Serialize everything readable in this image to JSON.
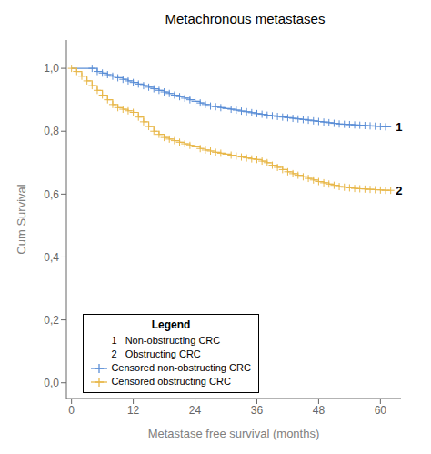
{
  "chart_data": {
    "type": "step",
    "title": "Metachronous metastases",
    "x_label": "Metastase free survival (months)",
    "y_label": "Cum Survival",
    "xlim": [
      -1,
      64
    ],
    "ylim": [
      -0.05,
      1.09
    ],
    "xticks": [
      0,
      12,
      24,
      36,
      48,
      60
    ],
    "yticks": [
      {
        "value": 0.0,
        "label": "0,0"
      },
      {
        "value": 0.2,
        "label": "0,2"
      },
      {
        "value": 0.4,
        "label": "0,4"
      },
      {
        "value": 0.6,
        "label": "0,6"
      },
      {
        "value": 0.8,
        "label": "0,8"
      },
      {
        "value": 1.0,
        "label": "1,0"
      }
    ],
    "grid": false,
    "legend": "lower left",
    "legend_title": "Legend",
    "series": [
      {
        "name": "1   Non-obstructing CRC",
        "type": "step",
        "color": "#5B8ED6",
        "x": [
          0,
          4,
          5,
          6,
          7,
          8,
          9,
          10,
          11,
          12,
          13,
          14,
          15,
          16,
          17,
          18,
          19,
          20,
          21,
          22,
          23,
          24,
          25,
          26,
          27,
          28,
          29,
          30,
          31,
          32,
          33,
          34,
          35,
          36,
          37,
          38,
          39,
          40,
          41,
          42,
          43,
          44,
          45,
          46,
          47,
          48,
          49,
          50,
          51,
          52,
          53,
          54,
          55,
          56,
          57,
          58,
          59,
          60,
          61,
          62
        ],
        "values": [
          1.0,
          1.0,
          0.99,
          0.985,
          0.98,
          0.975,
          0.97,
          0.965,
          0.96,
          0.955,
          0.95,
          0.945,
          0.94,
          0.935,
          0.93,
          0.925,
          0.92,
          0.915,
          0.91,
          0.905,
          0.9,
          0.895,
          0.89,
          0.885,
          0.88,
          0.878,
          0.875,
          0.872,
          0.87,
          0.867,
          0.864,
          0.862,
          0.859,
          0.856,
          0.854,
          0.851,
          0.849,
          0.847,
          0.845,
          0.843,
          0.841,
          0.839,
          0.837,
          0.835,
          0.833,
          0.831,
          0.829,
          0.827,
          0.825,
          0.823,
          0.822,
          0.821,
          0.82,
          0.819,
          0.818,
          0.817,
          0.816,
          0.815,
          0.814,
          0.813
        ]
      },
      {
        "name": "2   Obstructing CRC",
        "type": "step",
        "color": "#E8B84B",
        "x": [
          0,
          1,
          2,
          3,
          4,
          5,
          6,
          7,
          8,
          9,
          10,
          11,
          12,
          13,
          14,
          15,
          16,
          17,
          18,
          19,
          20,
          21,
          22,
          23,
          24,
          25,
          26,
          27,
          28,
          29,
          30,
          31,
          32,
          33,
          34,
          35,
          36,
          37,
          38,
          39,
          40,
          41,
          42,
          43,
          44,
          45,
          46,
          47,
          48,
          49,
          50,
          51,
          52,
          53,
          54,
          55,
          56,
          57,
          58,
          59,
          60,
          61,
          62
        ],
        "values": [
          1.0,
          0.99,
          0.975,
          0.96,
          0.945,
          0.93,
          0.915,
          0.9,
          0.885,
          0.875,
          0.87,
          0.865,
          0.86,
          0.845,
          0.83,
          0.815,
          0.8,
          0.79,
          0.78,
          0.775,
          0.77,
          0.765,
          0.76,
          0.755,
          0.75,
          0.745,
          0.74,
          0.737,
          0.733,
          0.73,
          0.727,
          0.724,
          0.721,
          0.718,
          0.715,
          0.712,
          0.71,
          0.705,
          0.7,
          0.692,
          0.685,
          0.678,
          0.671,
          0.665,
          0.66,
          0.655,
          0.65,
          0.645,
          0.64,
          0.636,
          0.632,
          0.628,
          0.624,
          0.622,
          0.62,
          0.618,
          0.617,
          0.616,
          0.615,
          0.614,
          0.613,
          0.612,
          0.612
        ]
      },
      {
        "name": "Censored non-obstructing CRC",
        "type": "scatter",
        "marker": "plus",
        "color": "#5B8ED6",
        "x": [
          4,
          5,
          6,
          7,
          8,
          9,
          10,
          11,
          12,
          13,
          14,
          15,
          16,
          17,
          18,
          19,
          20,
          21,
          22,
          23,
          24,
          25,
          26,
          27,
          28,
          29,
          30,
          31,
          32,
          33,
          34,
          35,
          36,
          37,
          38,
          39,
          40,
          41,
          42,
          43,
          44,
          45,
          46,
          47,
          48,
          49,
          50,
          51,
          52,
          53,
          54,
          55,
          56,
          57,
          58,
          59,
          60,
          61
        ],
        "values": [
          1.0,
          0.99,
          0.985,
          0.98,
          0.975,
          0.97,
          0.965,
          0.96,
          0.955,
          0.95,
          0.945,
          0.94,
          0.935,
          0.93,
          0.925,
          0.92,
          0.915,
          0.91,
          0.905,
          0.9,
          0.895,
          0.89,
          0.885,
          0.88,
          0.878,
          0.875,
          0.872,
          0.87,
          0.867,
          0.864,
          0.862,
          0.859,
          0.856,
          0.854,
          0.851,
          0.849,
          0.847,
          0.845,
          0.843,
          0.841,
          0.839,
          0.837,
          0.835,
          0.833,
          0.831,
          0.829,
          0.827,
          0.825,
          0.823,
          0.822,
          0.821,
          0.82,
          0.819,
          0.818,
          0.817,
          0.816,
          0.815,
          0.814
        ]
      },
      {
        "name": "Censored obstructing CRC",
        "type": "scatter",
        "marker": "plus",
        "color": "#E8B84B",
        "x": [
          0,
          1,
          2,
          3,
          4,
          5,
          6,
          7,
          8,
          9,
          10,
          11,
          12,
          13,
          14,
          15,
          16,
          17,
          18,
          19,
          20,
          21,
          22,
          23,
          24,
          25,
          26,
          27,
          28,
          29,
          30,
          31,
          32,
          33,
          34,
          35,
          36,
          37,
          38,
          39,
          40,
          41,
          42,
          43,
          44,
          45,
          46,
          47,
          48,
          49,
          50,
          51,
          52,
          53,
          54,
          55,
          56,
          57,
          58,
          59,
          60,
          61,
          62
        ],
        "values": [
          1.0,
          0.99,
          0.975,
          0.96,
          0.945,
          0.93,
          0.915,
          0.9,
          0.885,
          0.875,
          0.87,
          0.865,
          0.86,
          0.845,
          0.83,
          0.815,
          0.8,
          0.79,
          0.78,
          0.775,
          0.77,
          0.765,
          0.76,
          0.755,
          0.75,
          0.745,
          0.74,
          0.737,
          0.733,
          0.73,
          0.727,
          0.724,
          0.721,
          0.718,
          0.715,
          0.712,
          0.71,
          0.705,
          0.7,
          0.692,
          0.685,
          0.678,
          0.671,
          0.665,
          0.66,
          0.655,
          0.65,
          0.645,
          0.64,
          0.636,
          0.632,
          0.628,
          0.624,
          0.622,
          0.62,
          0.618,
          0.617,
          0.616,
          0.615,
          0.614,
          0.613,
          0.612,
          0.612
        ]
      }
    ],
    "annotations": [
      {
        "text": "1",
        "x": 63,
        "y": 0.813
      },
      {
        "text": "2",
        "x": 63,
        "y": 0.612
      }
    ]
  }
}
